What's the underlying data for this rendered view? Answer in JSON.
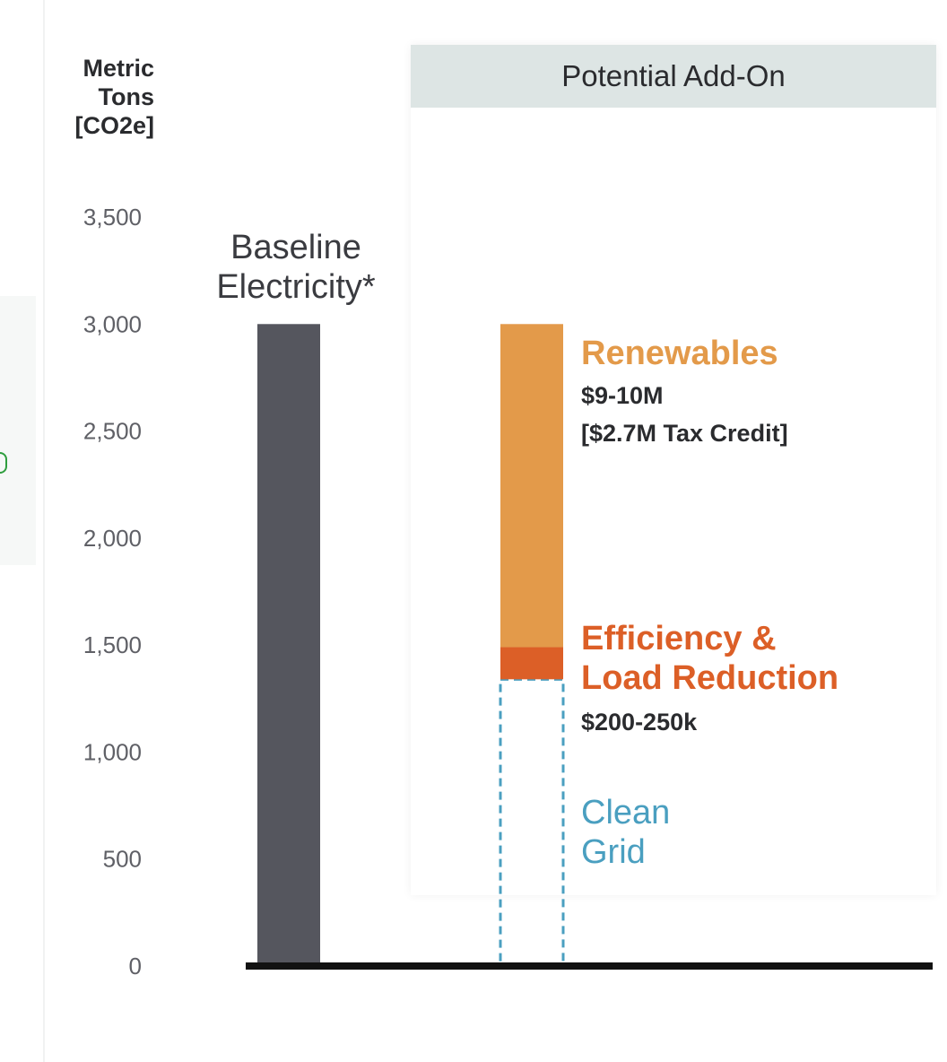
{
  "colors": {
    "baseline": "#55565e",
    "renewables": "#e39a4a",
    "efficiency": "#dc5f27",
    "clean_grid": "#4a9fc0",
    "axis": "#121212",
    "panel_header": "#dde5e4",
    "text_dark": "#2a2b2e",
    "tick_text": "#5f6066"
  },
  "panel": {
    "header": "Potential Add-On"
  },
  "chart_data": {
    "type": "bar",
    "title": "",
    "ylabel_lines": [
      "Metric",
      "Tons",
      "[CO2e]"
    ],
    "ylim": [
      0,
      3500
    ],
    "yticks": [
      0,
      500,
      1000,
      1500,
      2000,
      2500,
      3000,
      3500
    ],
    "ytick_labels": [
      "0",
      "500",
      "1,000",
      "1,500",
      "2,000",
      "2,500",
      "3,000",
      "3,500"
    ],
    "grid": false,
    "categories": [
      "Baseline Electricity*",
      ""
    ],
    "baseline": {
      "label_lines": [
        "Baseline",
        "Electricity*"
      ],
      "value": 3000
    },
    "stack": [
      {
        "name": "Clean Grid",
        "label_lines": [
          "Clean",
          "Grid"
        ],
        "from": 0,
        "to": 1340,
        "style": "dashed-outline",
        "cost_lines": []
      },
      {
        "name": "Efficiency & Load Reduction",
        "label_lines": [
          "Efficiency &",
          "Load Reduction"
        ],
        "from": 1340,
        "to": 1490,
        "style": "solid",
        "cost_lines": [
          "$200-250k"
        ]
      },
      {
        "name": "Renewables",
        "label_lines": [
          "Renewables"
        ],
        "from": 1490,
        "to": 3000,
        "style": "solid",
        "cost_lines": [
          "$9-10M",
          "[$2.7M Tax Credit]"
        ]
      }
    ]
  }
}
